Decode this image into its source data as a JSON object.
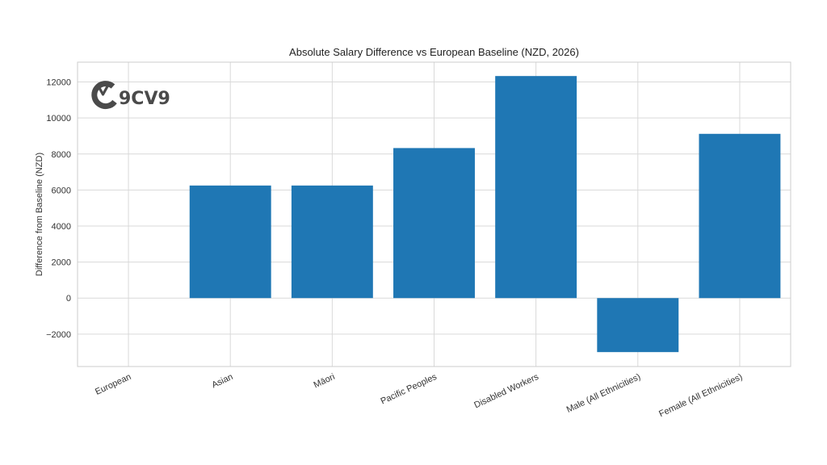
{
  "logo": {
    "mark_letter": "v",
    "text": "9CV9",
    "color": "#4a4a4a"
  },
  "chart_data": {
    "type": "bar",
    "title": "Absolute Salary Difference vs European Baseline (NZD, 2026)",
    "xlabel": "",
    "ylabel": "Difference from Baseline (NZD)",
    "categories": [
      "European",
      "Asian",
      "Māori",
      "Pacific Peoples",
      "Disabled Workers",
      "Male (All Ethnicities)",
      "Female (All Ethnicities)"
    ],
    "values": [
      0,
      6250,
      6250,
      8330,
      12330,
      -3000,
      9120
    ],
    "ylim": [
      -3800,
      13100
    ],
    "yticks": [
      -2000,
      0,
      2000,
      4000,
      6000,
      8000,
      10000,
      12000
    ],
    "ytick_labels": [
      "−2000",
      "0",
      "2000",
      "4000",
      "6000",
      "8000",
      "10000",
      "12000"
    ],
    "grid": true,
    "bar_color": "#1f77b4",
    "grid_color": "#d9d9d9",
    "frame_color": "#cccccc"
  }
}
